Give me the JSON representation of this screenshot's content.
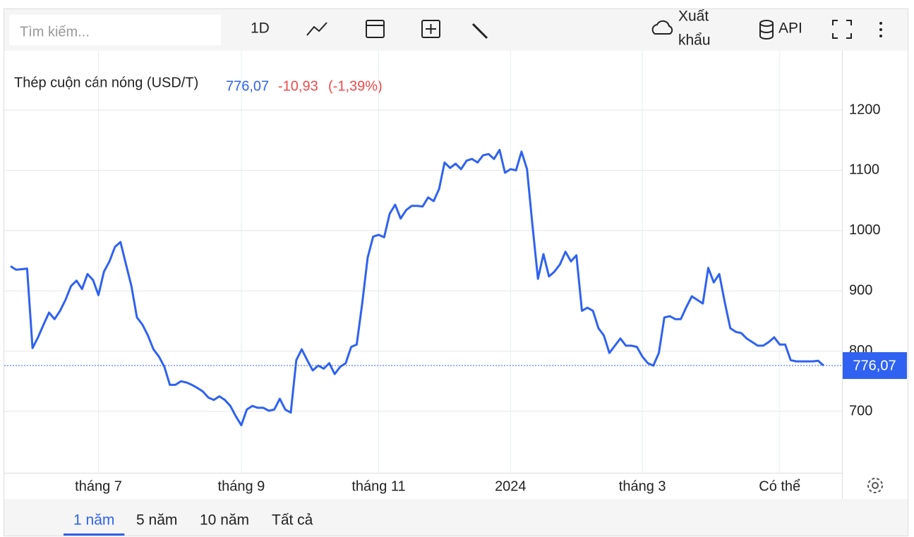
{
  "toolbar": {
    "search_placeholder": "Tìm kiếm...",
    "interval": "1D",
    "export_line1": "Xuất",
    "export_line2": "khẩu",
    "api": "API"
  },
  "ranges": {
    "items": [
      "1 năm",
      "5 năm",
      "10 năm",
      "Tất cả"
    ],
    "active": 0
  },
  "chart_data": {
    "type": "line",
    "title": "Thép cuộn cán nóng (USD/T)",
    "price": "776,07",
    "change": "-10,93",
    "change_pct": "(-1,39%)",
    "color": "#2f62f0",
    "up_color": "#2f62f0",
    "down_color": "#f04848",
    "categories": [
      null,
      null,
      null,
      null,
      null,
      null,
      null,
      null,
      null,
      null,
      null,
      null,
      null,
      null,
      null,
      null,
      "tháng 7",
      null,
      null,
      null,
      null,
      null,
      null,
      null,
      null,
      null,
      null,
      null,
      null,
      null,
      null,
      null,
      null,
      null,
      null,
      null,
      null,
      null,
      null,
      null,
      null,
      null,
      "tháng 9",
      null,
      null,
      null,
      null,
      null,
      null,
      null,
      null,
      null,
      null,
      null,
      null,
      null,
      null,
      null,
      null,
      null,
      null,
      null,
      null,
      null,
      null,
      null,
      null,
      "tháng 11",
      null,
      null,
      null,
      null,
      null,
      null,
      null,
      null,
      null,
      null,
      null,
      null,
      null,
      null,
      null,
      null,
      null,
      null,
      null,
      null,
      null,
      null,
      null,
      "2024",
      null,
      null,
      null,
      null,
      null,
      null,
      null,
      null,
      null,
      null,
      null,
      null,
      null,
      null,
      null,
      null,
      null,
      null,
      null,
      null,
      null,
      null,
      null,
      "tháng 3",
      null,
      null,
      null,
      null,
      null,
      null,
      null,
      null,
      null,
      null,
      null,
      null,
      null,
      null,
      null,
      null,
      null,
      null,
      null,
      null,
      null,
      null,
      null,
      null,
      "Có thể",
      null,
      null,
      null,
      null,
      null,
      null,
      null,
      null
    ],
    "values": [
      941,
      935,
      936,
      937,
      805,
      823,
      844,
      864,
      853,
      867,
      885,
      908,
      917,
      903,
      928,
      918,
      893,
      932,
      949,
      973,
      981,
      944,
      908,
      856,
      844,
      826,
      803,
      791,
      774,
      744,
      744,
      750,
      748,
      744,
      739,
      733,
      723,
      719,
      725,
      719,
      709,
      692,
      677,
      703,
      709,
      706,
      706,
      701,
      703,
      721,
      703,
      698,
      785,
      803,
      785,
      768,
      776,
      771,
      780,
      762,
      774,
      780,
      807,
      811,
      879,
      955,
      990,
      993,
      989,
      1028,
      1043,
      1020,
      1034,
      1041,
      1041,
      1040,
      1055,
      1049,
      1069,
      1113,
      1104,
      1111,
      1102,
      1116,
      1119,
      1113,
      1125,
      1127,
      1119,
      1134,
      1096,
      1102,
      1100,
      1131,
      1102,
      1008,
      920,
      961,
      924,
      932,
      944,
      965,
      949,
      959,
      867,
      872,
      867,
      838,
      826,
      797,
      809,
      821,
      809,
      809,
      807,
      791,
      780,
      776,
      797,
      856,
      858,
      853,
      853,
      873,
      891,
      885,
      879,
      938,
      914,
      928,
      881,
      838,
      832,
      830,
      821,
      815,
      809,
      809,
      815,
      823,
      811,
      811,
      785,
      783,
      783,
      783,
      783,
      784,
      776.07
    ],
    "last_price": {
      "value": 776.07,
      "label": "776,07"
    },
    "ylim": [
      600,
      1300
    ],
    "yticks": [
      700,
      800,
      900,
      1000,
      1100,
      1200
    ],
    "grid": true
  }
}
